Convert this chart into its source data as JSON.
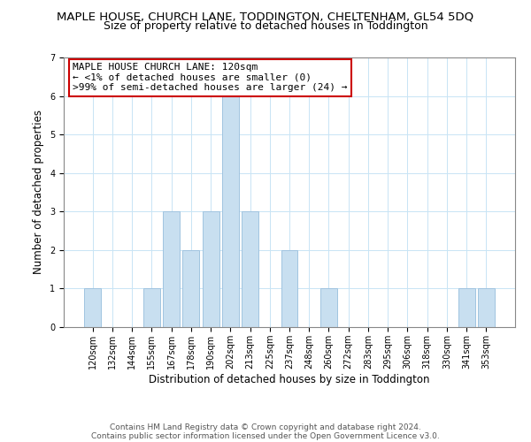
{
  "title_line1": "MAPLE HOUSE, CHURCH LANE, TODDINGTON, CHELTENHAM, GL54 5DQ",
  "title_line2": "Size of property relative to detached houses in Toddington",
  "xlabel": "Distribution of detached houses by size in Toddington",
  "ylabel": "Number of detached properties",
  "bin_labels": [
    "120sqm",
    "132sqm",
    "144sqm",
    "155sqm",
    "167sqm",
    "178sqm",
    "190sqm",
    "202sqm",
    "213sqm",
    "225sqm",
    "237sqm",
    "248sqm",
    "260sqm",
    "272sqm",
    "283sqm",
    "295sqm",
    "306sqm",
    "318sqm",
    "330sqm",
    "341sqm",
    "353sqm"
  ],
  "bar_heights": [
    1,
    0,
    0,
    1,
    3,
    2,
    3,
    6,
    3,
    0,
    2,
    0,
    1,
    0,
    0,
    0,
    0,
    0,
    0,
    1,
    1
  ],
  "bar_color": "#c8dff0",
  "bar_edge_color": "#a0c4e0",
  "annotation_box_text": "MAPLE HOUSE CHURCH LANE: 120sqm\n← <1% of detached houses are smaller (0)\n>99% of semi-detached houses are larger (24) →",
  "annotation_box_facecolor": "white",
  "annotation_box_edgecolor": "#cc0000",
  "ylim": [
    0,
    7
  ],
  "yticks": [
    0,
    1,
    2,
    3,
    4,
    5,
    6,
    7
  ],
  "footer_line1": "Contains HM Land Registry data © Crown copyright and database right 2024.",
  "footer_line2": "Contains public sector information licensed under the Open Government Licence v3.0.",
  "title_fontsize": 9.5,
  "subtitle_fontsize": 9,
  "xlabel_fontsize": 8.5,
  "ylabel_fontsize": 8.5,
  "tick_fontsize": 7,
  "footer_fontsize": 6.5,
  "annotation_fontsize": 8
}
